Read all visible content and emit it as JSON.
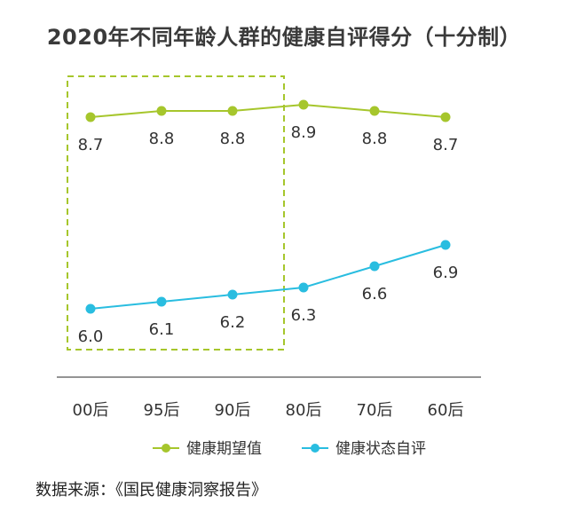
{
  "chart_data": {
    "type": "line",
    "title": "2020年不同年龄人群的健康自评得分（十分制）",
    "categories": [
      "00后",
      "95后",
      "90后",
      "80后",
      "70后",
      "60后"
    ],
    "series": [
      {
        "name": "健康期望值",
        "color": "#a6c62c",
        "values": [
          8.7,
          8.8,
          8.8,
          8.9,
          8.8,
          8.7
        ]
      },
      {
        "name": "健康状态自评",
        "color": "#29bde0",
        "values": [
          6.0,
          6.1,
          6.2,
          6.3,
          6.6,
          6.9
        ]
      }
    ],
    "highlight_range": [
      "00后",
      "90后"
    ],
    "highlight_color": "#a6c62c",
    "legend_position": "bottom",
    "grid": false
  },
  "source": "数据来源：《国民健康洞察报告》"
}
